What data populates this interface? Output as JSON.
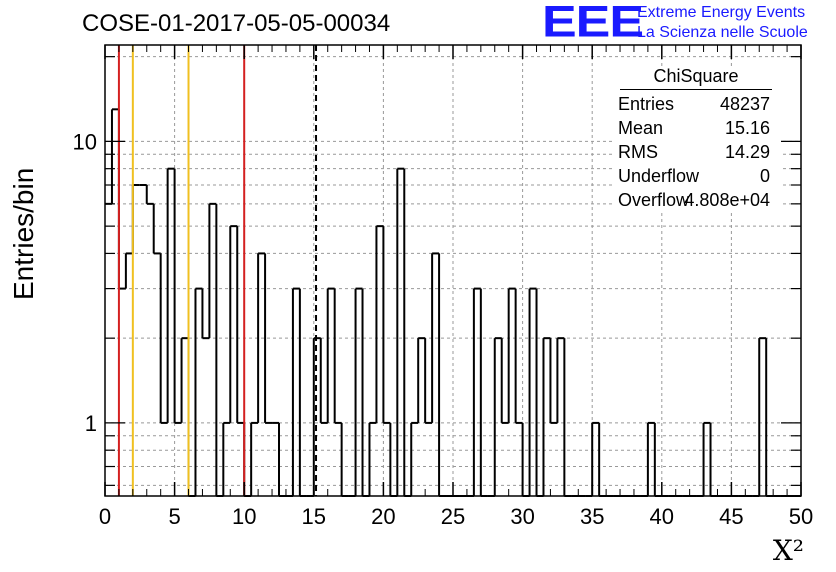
{
  "chart_data": {
    "type": "bar",
    "histogram": "step",
    "title": "COSE-01-2017-05-05-00034",
    "xlabel": "X²",
    "ylabel": "Entries/bin",
    "xlim": [
      0,
      50
    ],
    "ylim": [
      0.55,
      22
    ],
    "yscale": "log",
    "grid": true,
    "bin_width": 0.5,
    "values": [
      6,
      13,
      3,
      4,
      7,
      7,
      6,
      4,
      1,
      8,
      1,
      2,
      0.5,
      3,
      2,
      6,
      0.5,
      1,
      5,
      1,
      0.5,
      1,
      4,
      1,
      1,
      0.5,
      0.5,
      3,
      0.5,
      0.5,
      2,
      1,
      3,
      1,
      0.5,
      0.5,
      3,
      0.5,
      1,
      5,
      1,
      0.5,
      8,
      0.5,
      1,
      2,
      1,
      4,
      0.5,
      0.5,
      0.5,
      0.5,
      0.5,
      3,
      0.5,
      0.5,
      2,
      1,
      3,
      1,
      0.5,
      3,
      0.5,
      2,
      1,
      2,
      0.5,
      0.5,
      0.5,
      0.5,
      1,
      0.5,
      0.5,
      0.5,
      0.5,
      0.5,
      0.5,
      0.5,
      1,
      0.5,
      0.5,
      0.5,
      0.5,
      0.5,
      0.5,
      0.5,
      1,
      0.5,
      0.5,
      0.5,
      0.5,
      0.5,
      0.5,
      0.5,
      2,
      0.5,
      0.5,
      0.5,
      0.5,
      0.5
    ],
    "xticks": [
      0,
      5,
      10,
      15,
      20,
      25,
      30,
      35,
      40,
      45,
      50
    ],
    "yticks": [
      1,
      10
    ],
    "vlines": [
      {
        "x": 1,
        "color": "#d42020",
        "style": "solid"
      },
      {
        "x": 2,
        "color": "#f0c020",
        "style": "solid"
      },
      {
        "x": 6,
        "color": "#f0c020",
        "style": "solid"
      },
      {
        "x": 10,
        "color": "#d42020",
        "style": "solid"
      },
      {
        "x": 15.16,
        "color": "#000000",
        "style": "dashed"
      }
    ],
    "stats_box": {
      "title": "ChiSquare",
      "rows": [
        {
          "key": "Entries",
          "value": "48237"
        },
        {
          "key": "Mean",
          "value": "15.16"
        },
        {
          "key": "RMS",
          "value": "14.29"
        },
        {
          "key": "Underflow",
          "value": "0"
        },
        {
          "key": "Overflow",
          "value": "4.808e+04"
        }
      ]
    }
  },
  "logo": {
    "text": "EEE",
    "line1": "Extreme Energy Events",
    "line2": "La Scienza nelle Scuole",
    "color": "#1a1aff"
  }
}
